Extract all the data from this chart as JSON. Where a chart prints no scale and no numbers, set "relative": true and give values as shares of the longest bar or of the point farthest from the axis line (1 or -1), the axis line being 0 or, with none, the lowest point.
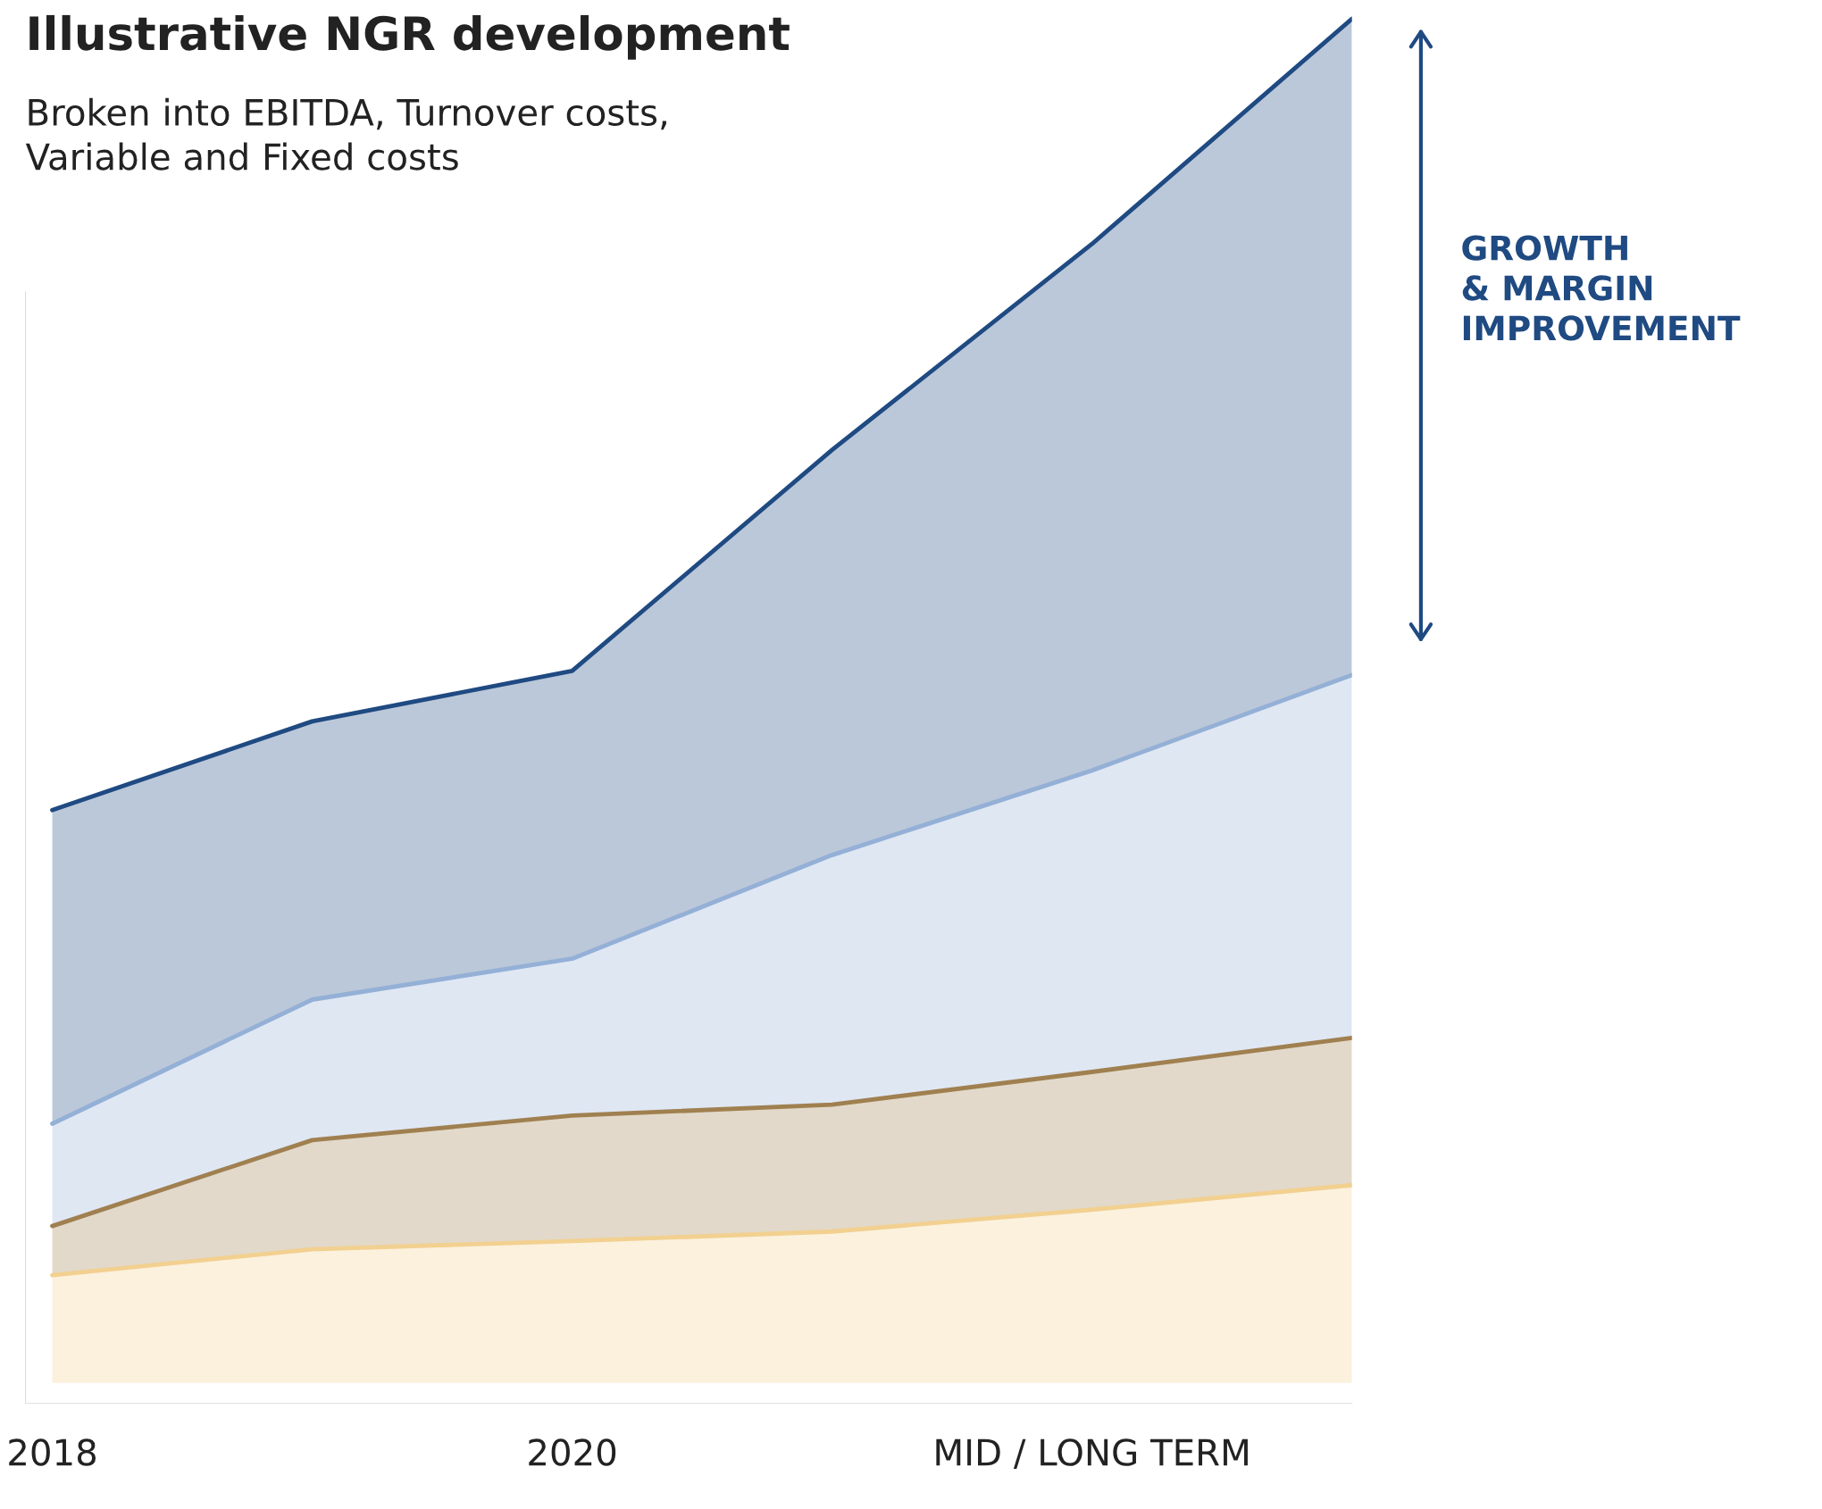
{
  "chart_data": {
    "type": "area",
    "title": "Illustrative NGR development",
    "subtitle": "Broken into EBITDA, Turnover costs,\nVariable and Fixed costs",
    "categories": [
      "2018",
      null,
      "2020",
      null,
      "MID / LONG TERM",
      null
    ],
    "relative": true,
    "stacked": true,
    "series": [
      {
        "color": "#f2d090",
        "values": [
          0.079,
          0.098,
          0.104,
          0.111,
          0.127,
          0.145
        ]
      },
      {
        "color": "#a08050",
        "values": [
          0.036,
          0.08,
          0.092,
          0.093,
          0.101,
          0.108
        ]
      },
      {
        "color": "#94b0d6",
        "values": [
          0.075,
          0.103,
          0.115,
          0.183,
          0.221,
          0.266
        ]
      },
      {
        "color": "#1f4a82",
        "values": [
          0.23,
          0.204,
          0.211,
          0.297,
          0.386,
          0.481
        ]
      }
    ],
    "annotations": [
      "GROWTH\n& MARGIN\nIMPROVEMENT"
    ]
  }
}
